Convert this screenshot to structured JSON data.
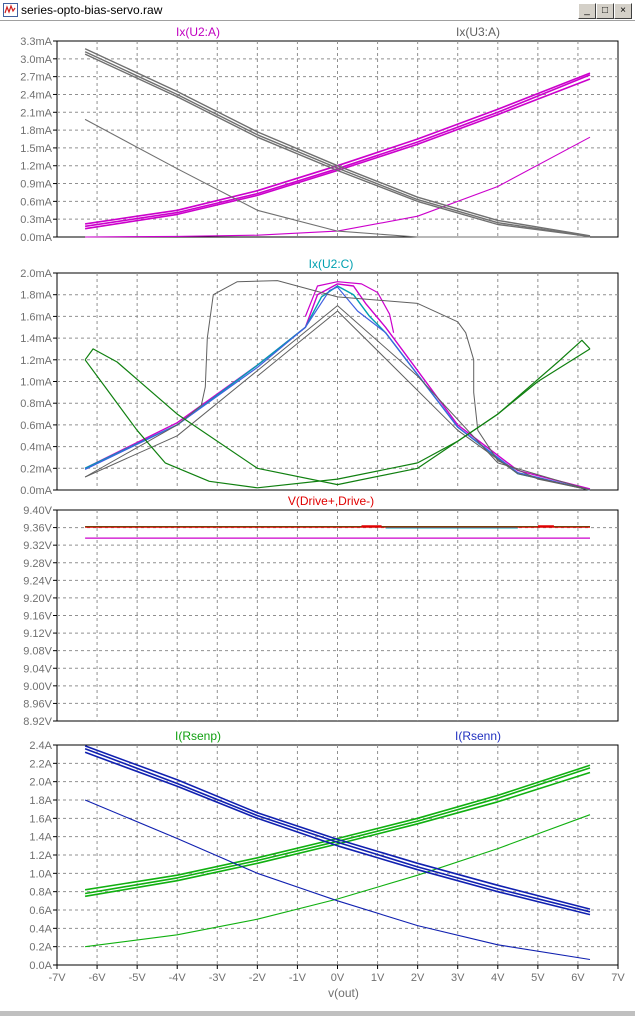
{
  "window": {
    "title": "series-opto-bias-servo.raw",
    "buttons": {
      "minimize": "_",
      "maximize": "□",
      "close": "×"
    }
  },
  "chart_data": [
    {
      "type": "line",
      "id": "pane1",
      "xlim": [
        -7,
        7
      ],
      "ylim": [
        0,
        3.3
      ],
      "yticks": [
        "0.0mA",
        "0.3mA",
        "0.6mA",
        "0.9mA",
        "1.2mA",
        "1.5mA",
        "1.8mA",
        "2.1mA",
        "2.4mA",
        "2.7mA",
        "3.0mA",
        "3.3mA"
      ],
      "grid": true,
      "legend_labels": [
        {
          "text": "Ix(U2:A)",
          "color": "#c000c0",
          "pos": "top-left"
        },
        {
          "text": "Ix(U3:A)",
          "color": "#606060",
          "pos": "top-right"
        }
      ],
      "series": [
        {
          "color": "#cc00cc",
          "width": 1.6,
          "x": [
            -6.3,
            -4,
            -2,
            0,
            2,
            4,
            6.3
          ],
          "y": [
            0.22,
            0.45,
            0.78,
            1.2,
            1.65,
            2.15,
            2.76
          ]
        },
        {
          "color": "#cc00cc",
          "width": 1.6,
          "x": [
            -6.3,
            -4,
            -2,
            0,
            2,
            4,
            6.3
          ],
          "y": [
            0.18,
            0.41,
            0.73,
            1.15,
            1.6,
            2.1,
            2.73
          ]
        },
        {
          "color": "#cc00cc",
          "width": 1.6,
          "x": [
            -6.3,
            -4,
            -2,
            0,
            2,
            4,
            6.3
          ],
          "y": [
            0.14,
            0.38,
            0.7,
            1.12,
            1.56,
            2.06,
            2.66
          ]
        },
        {
          "color": "#cc00cc",
          "width": 1.1,
          "x": [
            -6.3,
            -4,
            -2,
            0,
            2,
            4,
            6.3
          ],
          "y": [
            0.0,
            0.01,
            0.03,
            0.1,
            0.35,
            0.85,
            1.68
          ]
        },
        {
          "color": "#707070",
          "width": 1.4,
          "x": [
            -6.3,
            -4,
            -2,
            0,
            2,
            4,
            6.3
          ],
          "y": [
            3.17,
            2.45,
            1.77,
            1.2,
            0.67,
            0.28,
            0.02
          ]
        },
        {
          "color": "#707070",
          "width": 1.4,
          "x": [
            -6.3,
            -4,
            -2,
            0,
            2,
            4,
            6.3
          ],
          "y": [
            3.12,
            2.4,
            1.72,
            1.16,
            0.63,
            0.24,
            0.01
          ]
        },
        {
          "color": "#707070",
          "width": 1.4,
          "x": [
            -6.3,
            -4,
            -2,
            0,
            2,
            4,
            6.3
          ],
          "y": [
            3.08,
            2.36,
            1.68,
            1.12,
            0.6,
            0.21,
            0.01
          ]
        },
        {
          "color": "#707070",
          "width": 1.1,
          "x": [
            -6.3,
            -4,
            -2,
            0,
            2,
            4,
            6.3
          ],
          "y": [
            1.98,
            1.15,
            0.45,
            0.1,
            0.0,
            0.0,
            0.0
          ]
        }
      ]
    },
    {
      "type": "line",
      "id": "pane2",
      "xlim": [
        -7,
        7
      ],
      "ylim": [
        0,
        2.0
      ],
      "yticks": [
        "0.0mA",
        "0.2mA",
        "0.4mA",
        "0.6mA",
        "0.8mA",
        "1.0mA",
        "1.2mA",
        "1.4mA",
        "1.6mA",
        "1.8mA",
        "2.0mA"
      ],
      "grid": true,
      "legend_labels": [
        {
          "text": "Ix(U2:C)",
          "color": "#00a0b0",
          "pos": "top-center"
        }
      ],
      "series": [
        {
          "color": "#cc00cc",
          "width": 1.4,
          "x": [
            -6.3,
            -4,
            -2,
            -0.8,
            -0.5,
            0,
            0.4,
            0.7,
            1.2,
            3,
            4.5,
            6.3
          ],
          "y": [
            0.2,
            0.62,
            1.15,
            1.5,
            1.8,
            1.9,
            1.88,
            1.72,
            1.5,
            0.6,
            0.18,
            0.01
          ]
        },
        {
          "color": "#00a0b0",
          "width": 1.4,
          "x": [
            -6.3,
            -4,
            -2,
            -0.8,
            -0.4,
            0,
            0.4,
            0.8,
            1.2,
            3,
            4.5,
            6.3
          ],
          "y": [
            0.2,
            0.6,
            1.15,
            1.5,
            1.78,
            1.88,
            1.8,
            1.6,
            1.45,
            0.58,
            0.15,
            0.0
          ]
        },
        {
          "color": "#4060e0",
          "width": 1.2,
          "x": [
            -6.3,
            -4,
            -2,
            -0.8,
            -0.2,
            0,
            0.5,
            1.2,
            3,
            4.5,
            6.3
          ],
          "y": [
            0.19,
            0.6,
            1.13,
            1.5,
            1.84,
            1.87,
            1.65,
            1.45,
            0.58,
            0.16,
            0.0
          ]
        },
        {
          "color": "#cc00cc",
          "width": 1.2,
          "x": [
            -0.8,
            -0.5,
            0,
            0.6,
            1,
            1.3,
            1.4
          ],
          "y": [
            1.6,
            1.88,
            1.92,
            1.9,
            1.82,
            1.62,
            1.45
          ]
        },
        {
          "color": "#606060",
          "width": 1.0,
          "x": [
            -6.3,
            -4,
            -3.4,
            -3.3,
            -3.25,
            -3.1,
            -2.5,
            -1.5,
            0,
            2,
            3,
            3.2,
            3.4,
            3.4,
            3.5,
            4,
            5,
            6.3
          ],
          "y": [
            0.12,
            0.6,
            0.78,
            0.95,
            1.4,
            1.8,
            1.92,
            1.93,
            1.78,
            1.72,
            1.55,
            1.45,
            1.2,
            0.9,
            0.55,
            0.27,
            0.1,
            0.0
          ]
        },
        {
          "color": "#606060",
          "width": 1.0,
          "x": [
            -6.3,
            -4,
            -2,
            0,
            2,
            4,
            6.3
          ],
          "y": [
            0.12,
            0.5,
            1.1,
            1.7,
            1.05,
            0.25,
            0.0
          ]
        },
        {
          "color": "#606060",
          "width": 1.0,
          "x": [
            -2,
            -1,
            0,
            1.5,
            3,
            4.5,
            6.3
          ],
          "y": [
            1.05,
            1.35,
            1.65,
            1.1,
            0.55,
            0.15,
            0.0
          ]
        },
        {
          "color": "#108010",
          "width": 1.2,
          "x": [
            -6.3,
            -6.1,
            -5.5,
            -4,
            -2,
            0,
            2,
            4,
            5.5,
            6.1,
            6.3
          ],
          "y": [
            1.2,
            1.3,
            1.18,
            0.7,
            0.2,
            0.05,
            0.2,
            0.7,
            1.18,
            1.38,
            1.3
          ]
        },
        {
          "color": "#108010",
          "width": 1.2,
          "x": [
            -6.3,
            -5.8,
            -5,
            -4.3,
            -3.2,
            -2,
            0,
            2,
            3,
            4,
            5,
            6.3
          ],
          "y": [
            1.2,
            0.95,
            0.55,
            0.25,
            0.08,
            0.02,
            0.1,
            0.25,
            0.45,
            0.7,
            1.0,
            1.3
          ]
        }
      ]
    },
    {
      "type": "line",
      "id": "pane3",
      "xlim": [
        -7,
        7
      ],
      "ylim": [
        8.92,
        9.4
      ],
      "yticks": [
        "8.92V",
        "8.96V",
        "9.00V",
        "9.04V",
        "9.08V",
        "9.12V",
        "9.16V",
        "9.20V",
        "9.24V",
        "9.28V",
        "9.32V",
        "9.36V",
        "9.40V"
      ],
      "grid": true,
      "legend_labels": [
        {
          "text": "V(Drive+,Drive-)",
          "color": "#e00000",
          "pos": "top-center"
        }
      ],
      "series": [
        {
          "color": "#108010",
          "width": 1.4,
          "x": [
            -6.3,
            6.3
          ],
          "y": [
            9.362,
            9.362
          ]
        },
        {
          "color": "#e00000",
          "width": 1.2,
          "x": [
            -6.3,
            6.3
          ],
          "y": [
            9.361,
            9.361
          ]
        },
        {
          "color": "#e00000",
          "width": 2.2,
          "x": [
            0.6,
            1.1
          ],
          "y": [
            9.363,
            9.363
          ]
        },
        {
          "color": "#e00000",
          "width": 2.2,
          "x": [
            5,
            5.4
          ],
          "y": [
            9.363,
            9.363
          ]
        },
        {
          "color": "#00a0b0",
          "width": 1.0,
          "x": [
            1.2,
            4.5
          ],
          "y": [
            9.359,
            9.359
          ]
        },
        {
          "color": "#cc00cc",
          "width": 1.2,
          "x": [
            -6.3,
            6.3
          ],
          "y": [
            9.336,
            9.336
          ]
        }
      ]
    },
    {
      "type": "line",
      "id": "pane4",
      "xlim": [
        -7,
        7
      ],
      "ylim": [
        0,
        2.4
      ],
      "yticks": [
        "0.0A",
        "0.2A",
        "0.4A",
        "0.6A",
        "0.8A",
        "1.0A",
        "1.2A",
        "1.4A",
        "1.6A",
        "1.8A",
        "2.0A",
        "2.2A",
        "2.4A"
      ],
      "xticks": [
        "-7V",
        "-6V",
        "-5V",
        "-4V",
        "-3V",
        "-2V",
        "-1V",
        "0V",
        "1V",
        "2V",
        "3V",
        "4V",
        "5V",
        "6V",
        "7V"
      ],
      "xlabel": "v(out)",
      "grid": true,
      "legend_labels": [
        {
          "text": "I(Rsenp)",
          "color": "#10a010",
          "pos": "top-left"
        },
        {
          "text": "I(Rsenn)",
          "color": "#2030c0",
          "pos": "top-right"
        }
      ],
      "series": [
        {
          "color": "#10b010",
          "width": 1.6,
          "x": [
            -6.3,
            -4,
            -2,
            0,
            2,
            4,
            6.3
          ],
          "y": [
            0.82,
            0.98,
            1.17,
            1.38,
            1.6,
            1.85,
            2.18
          ]
        },
        {
          "color": "#10b010",
          "width": 1.6,
          "x": [
            -6.3,
            -4,
            -2,
            0,
            2,
            4,
            6.3
          ],
          "y": [
            0.78,
            0.95,
            1.14,
            1.35,
            1.57,
            1.82,
            2.15
          ]
        },
        {
          "color": "#10b010",
          "width": 1.6,
          "x": [
            -6.3,
            -4,
            -2,
            0,
            2,
            4,
            6.3
          ],
          "y": [
            0.75,
            0.92,
            1.11,
            1.32,
            1.54,
            1.78,
            2.1
          ]
        },
        {
          "color": "#10b010",
          "width": 1.1,
          "x": [
            -6.3,
            -4,
            -2,
            0,
            2,
            4,
            6.3
          ],
          "y": [
            0.2,
            0.33,
            0.5,
            0.72,
            0.98,
            1.27,
            1.64
          ]
        },
        {
          "color": "#1020b0",
          "width": 1.6,
          "x": [
            -6.3,
            -4,
            -2,
            0,
            2,
            4,
            6.3
          ],
          "y": [
            2.39,
            2.02,
            1.66,
            1.37,
            1.11,
            0.87,
            0.61
          ]
        },
        {
          "color": "#1020b0",
          "width": 1.6,
          "x": [
            -6.3,
            -4,
            -2,
            0,
            2,
            4,
            6.3
          ],
          "y": [
            2.36,
            1.98,
            1.63,
            1.34,
            1.07,
            0.83,
            0.58
          ]
        },
        {
          "color": "#1020b0",
          "width": 1.6,
          "x": [
            -6.3,
            -4,
            -2,
            0,
            2,
            4,
            6.3
          ],
          "y": [
            2.32,
            1.95,
            1.6,
            1.3,
            1.04,
            0.8,
            0.55
          ]
        },
        {
          "color": "#1020b0",
          "width": 1.1,
          "x": [
            -6.3,
            -4,
            -2,
            0,
            2,
            4,
            6.3
          ],
          "y": [
            1.8,
            1.38,
            1.0,
            0.7,
            0.43,
            0.22,
            0.06
          ]
        }
      ]
    }
  ]
}
